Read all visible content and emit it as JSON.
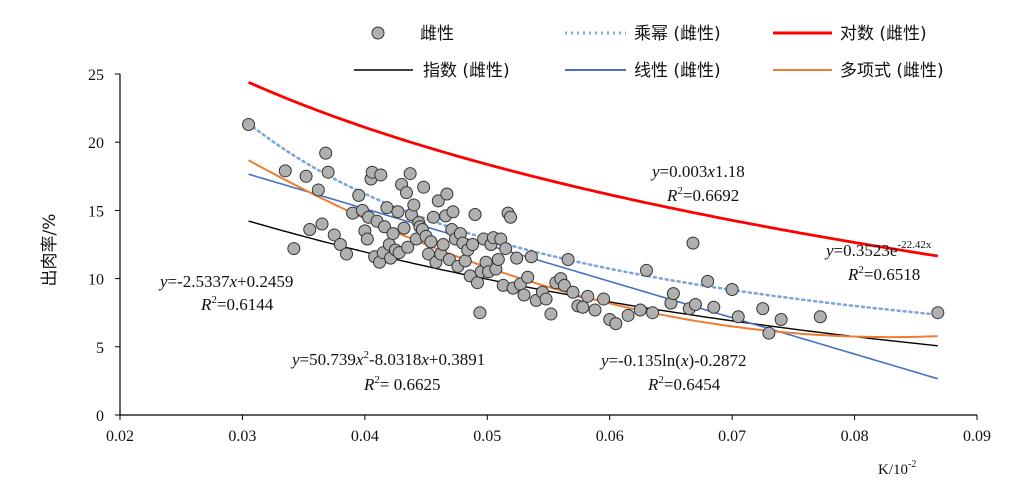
{
  "chart_data": {
    "type": "scatter",
    "title": "",
    "xlabel": "K/10",
    "xlabel_exp": "-2",
    "ylabel": "出肉率/%",
    "xlim": [
      0.02,
      0.09
    ],
    "ylim": [
      0,
      25
    ],
    "xticks": [
      "0.02",
      "0.03",
      "0.04",
      "0.05",
      "0.06",
      "0.07",
      "0.08",
      "0.09"
    ],
    "yticks": [
      "0",
      "5",
      "10",
      "15",
      "20",
      "25"
    ],
    "scatter": {
      "name": "雌性",
      "color": "#b0b0b0",
      "x": [
        0.0305,
        0.0335,
        0.0342,
        0.0352,
        0.0355,
        0.0362,
        0.0365,
        0.0368,
        0.037,
        0.0375,
        0.038,
        0.0385,
        0.039,
        0.0395,
        0.0398,
        0.04,
        0.0402,
        0.0403,
        0.0405,
        0.0406,
        0.0408,
        0.041,
        0.0412,
        0.0413,
        0.0415,
        0.0416,
        0.0418,
        0.042,
        0.0421,
        0.0423,
        0.0425,
        0.0427,
        0.0428,
        0.043,
        0.0432,
        0.0434,
        0.0435,
        0.0437,
        0.0438,
        0.044,
        0.0442,
        0.0444,
        0.0445,
        0.0447,
        0.0448,
        0.045,
        0.0452,
        0.0454,
        0.0456,
        0.0458,
        0.046,
        0.0462,
        0.0464,
        0.0466,
        0.0467,
        0.0469,
        0.0471,
        0.0472,
        0.0474,
        0.0476,
        0.0478,
        0.048,
        0.0482,
        0.0484,
        0.0486,
        0.0488,
        0.049,
        0.0492,
        0.0494,
        0.0495,
        0.0497,
        0.0499,
        0.0501,
        0.0503,
        0.0505,
        0.0507,
        0.0509,
        0.0511,
        0.0513,
        0.0515,
        0.0517,
        0.0519,
        0.0521,
        0.0524,
        0.0527,
        0.053,
        0.0533,
        0.0536,
        0.054,
        0.0545,
        0.0548,
        0.0552,
        0.0556,
        0.056,
        0.0563,
        0.0566,
        0.057,
        0.0574,
        0.0578,
        0.0582,
        0.0588,
        0.0595,
        0.06,
        0.0605,
        0.0615,
        0.0625,
        0.063,
        0.0635,
        0.065,
        0.0652,
        0.0665,
        0.0668,
        0.067,
        0.068,
        0.0685,
        0.07,
        0.0705,
        0.0725,
        0.073,
        0.074,
        0.0772,
        0.0868
      ],
      "y": [
        21.3,
        17.9,
        12.2,
        17.5,
        13.6,
        16.5,
        14.0,
        19.2,
        17.8,
        13.2,
        12.5,
        11.8,
        14.8,
        16.1,
        15.0,
        13.5,
        12.9,
        14.5,
        17.3,
        17.8,
        11.6,
        14.2,
        11.2,
        17.6,
        11.9,
        13.8,
        15.2,
        12.5,
        11.5,
        13.3,
        12.1,
        14.9,
        11.9,
        16.9,
        13.7,
        16.3,
        12.3,
        17.7,
        14.7,
        15.4,
        12.9,
        14.1,
        13.8,
        13.6,
        16.7,
        13.1,
        11.8,
        12.7,
        14.5,
        11.2,
        15.7,
        11.8,
        12.5,
        14.6,
        16.2,
        11.4,
        13.6,
        14.9,
        12.9,
        10.9,
        13.3,
        12.6,
        11.3,
        12.1,
        10.2,
        12.5,
        14.7,
        9.7,
        7.5,
        10.5,
        12.9,
        11.2,
        10.5,
        12.5,
        13.0,
        10.7,
        11.4,
        12.9,
        9.5,
        12.2,
        14.8,
        14.5,
        9.3,
        11.5,
        9.6,
        8.8,
        10.1,
        11.6,
        8.4,
        9.0,
        8.5,
        7.4,
        9.7,
        10.0,
        9.5,
        11.4,
        9.0,
        8.0,
        7.9,
        8.7,
        7.7,
        8.5,
        7.0,
        6.7,
        7.3,
        7.7,
        10.6,
        7.5,
        8.2,
        8.9,
        7.8,
        12.6,
        8.1,
        9.8,
        7.9,
        9.2,
        7.2,
        7.8,
        6.0,
        7.0,
        7.2,
        7.5
      ]
    },
    "lines": [
      {
        "name": "指数 (雌性)",
        "type": "exp",
        "color": "#000000",
        "width": 1.4,
        "dash": ""
      },
      {
        "name": "线性 (雌性)",
        "type": "linear",
        "color": "#4472c4",
        "width": 1.6,
        "dash": ""
      },
      {
        "name": "乘幂 (雌性)",
        "type": "power",
        "color": "#7da7d9",
        "width": 2.6,
        "dash": "2,4"
      },
      {
        "name": "多项式 (雌性)",
        "type": "poly",
        "color": "#ed7d31",
        "width": 2.0,
        "dash": ""
      },
      {
        "name": "对数 (雌性)",
        "type": "log",
        "color": "#ff0000",
        "width": 2.8,
        "dash": ""
      }
    ],
    "legend": [
      {
        "name": "雌性",
        "marker": "circle",
        "color": "#b0b0b0"
      },
      {
        "name": "乘幂 (雌性)",
        "marker": "line",
        "color": "#7da7d9",
        "dash": "2,4"
      },
      {
        "name": "对数 (雌性)",
        "marker": "line",
        "color": "#ff0000"
      },
      {
        "name": "指数 (雌性)",
        "marker": "line",
        "color": "#000000"
      },
      {
        "name": "线性 (雌性)",
        "marker": "line",
        "color": "#4472c4"
      },
      {
        "name": "多项式 (雌性)",
        "marker": "line",
        "color": "#ed7d31"
      }
    ],
    "annotations": {
      "power": {
        "y_var": "y",
        "eq": "=0.003",
        "x_var": "x",
        "eq_tail": "1.18",
        "r2_label": "R",
        "r2_sup": "2",
        "r2_val": "=0.6692"
      },
      "exp": {
        "y_var": "y",
        "eq": "=0.3523e",
        "eq_sup": "-22.42x",
        "r2_label": "R",
        "r2_sup": "2",
        "r2_val": "=0.6518"
      },
      "linear": {
        "y_var": "y",
        "eq": "=-2.5337",
        "x_var": "x",
        "eq_tail": "+0.2459",
        "r2_label": "R",
        "r2_sup": "2",
        "r2_val": "=0.6144"
      },
      "poly": {
        "y_var": "y",
        "eq": "=50.739",
        "x_var": "x",
        "x_sup": "2",
        "eq_mid": "-8.0318",
        "x_var2": "x",
        "eq_tail": "+0.3891",
        "r2_label": "R",
        "r2_sup": "2",
        "r2_val": "= 0.6625"
      },
      "log": {
        "y_var": "y",
        "eq": "=-0.135ln(",
        "x_var": "x",
        "eq_tail": ")-0.2872",
        "r2_label": "R",
        "r2_sup": "2",
        "r2_val": "=0.6454"
      }
    }
  }
}
